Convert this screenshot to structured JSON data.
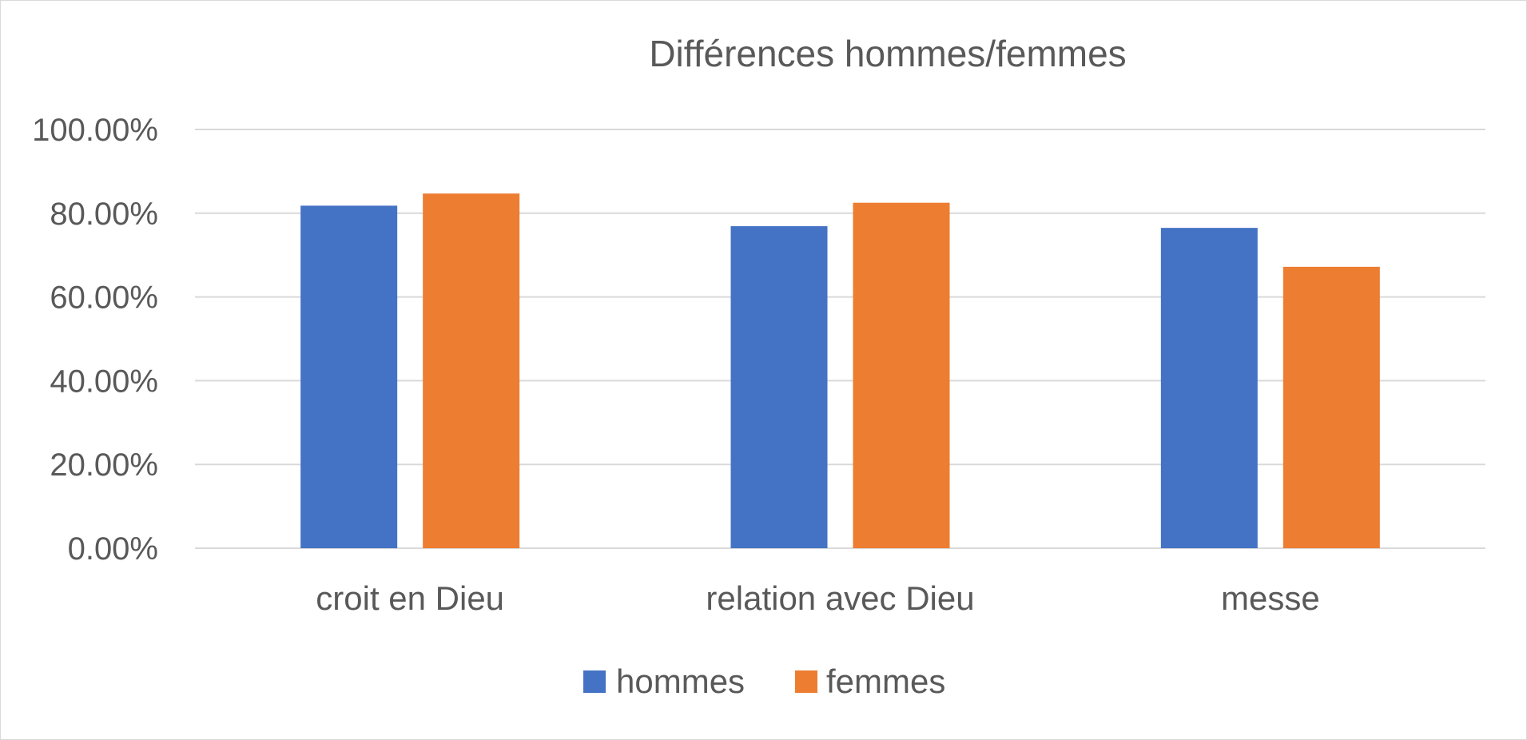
{
  "chart_data": {
    "type": "bar",
    "title": "Différences hommes/femmes",
    "xlabel": "",
    "ylabel": "",
    "categories": [
      "croit en Dieu",
      "relation avec Dieu",
      "messe"
    ],
    "series": [
      {
        "name": "hommes",
        "color": "#4472C4",
        "values": [
          0.818,
          0.769,
          0.765
        ]
      },
      {
        "name": "femmes",
        "color": "#ED7D31",
        "values": [
          0.847,
          0.825,
          0.672
        ]
      }
    ],
    "ylim": [
      0,
      1
    ],
    "yticks": [
      {
        "value": 0,
        "label": "0.00%"
      },
      {
        "value": 0.2,
        "label": "20.00%"
      },
      {
        "value": 0.4,
        "label": "40.00%"
      },
      {
        "value": 0.6,
        "label": "60.00%"
      },
      {
        "value": 0.8,
        "label": "80.00%"
      },
      {
        "value": 1,
        "label": "100.00%"
      }
    ],
    "grid": true,
    "legend_position": "bottom"
  }
}
